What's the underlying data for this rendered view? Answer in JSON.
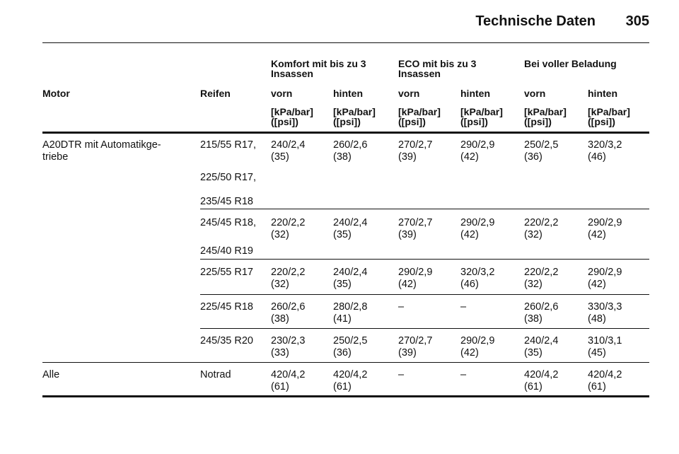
{
  "header": {
    "title": "Technische Daten",
    "page": "305"
  },
  "table": {
    "groups": [
      "Komfort mit bis zu 3\nInsassen",
      "ECO mit bis zu 3\nInsassen",
      "Bei voller Beladung"
    ],
    "columns": [
      "Motor",
      "Reifen",
      "vorn",
      "hinten",
      "vorn",
      "hinten",
      "vorn",
      "hinten"
    ],
    "units": [
      "[kPa/bar]\n([psi])",
      "[kPa/bar]\n([psi])",
      "[kPa/bar]\n([psi])",
      "[kPa/bar]\n([psi])",
      "[kPa/bar]\n([psi])",
      "[kPa/bar]\n([psi])"
    ],
    "rows": [
      {
        "motor": "A20DTR mit Automatikge-\ntriebe",
        "subgroups": [
          {
            "tires": [
              "215/55 R17,",
              "225/50 R17,",
              "235/45 R18"
            ],
            "values": [
              "240/2,4\n(35)",
              "260/2,6\n(38)",
              "270/2,7\n(39)",
              "290/2,9\n(42)",
              "250/2,5\n(36)",
              "320/3,2\n(46)"
            ]
          },
          {
            "tires": [
              "245/45 R18,",
              "245/40 R19"
            ],
            "values": [
              "220/2,2\n(32)",
              "240/2,4\n(35)",
              "270/2,7\n(39)",
              "290/2,9\n(42)",
              "220/2,2\n(32)",
              "290/2,9\n(42)"
            ]
          },
          {
            "tires": [
              "225/55 R17"
            ],
            "values": [
              "220/2,2\n(32)",
              "240/2,4\n(35)",
              "290/2,9\n(42)",
              "320/3,2\n(46)",
              "220/2,2\n(32)",
              "290/2,9\n(42)"
            ]
          },
          {
            "tires": [
              "225/45 R18"
            ],
            "values": [
              "260/2,6\n(38)",
              "280/2,8\n(41)",
              "–",
              "–",
              "260/2,6\n(38)",
              "330/3,3\n(48)"
            ]
          },
          {
            "tires": [
              "245/35 R20"
            ],
            "values": [
              "230/2,3\n(33)",
              "250/2,5\n(36)",
              "270/2,7\n(39)",
              "290/2,9\n(42)",
              "240/2,4\n(35)",
              "310/3,1\n(45)"
            ]
          }
        ]
      },
      {
        "motor": "Alle",
        "subgroups": [
          {
            "tires": [
              "Notrad"
            ],
            "values": [
              "420/4,2\n(61)",
              "420/4,2\n(61)",
              "–",
              "–",
              "420/4,2\n(61)",
              "420/4,2\n(61)"
            ]
          }
        ]
      }
    ]
  }
}
